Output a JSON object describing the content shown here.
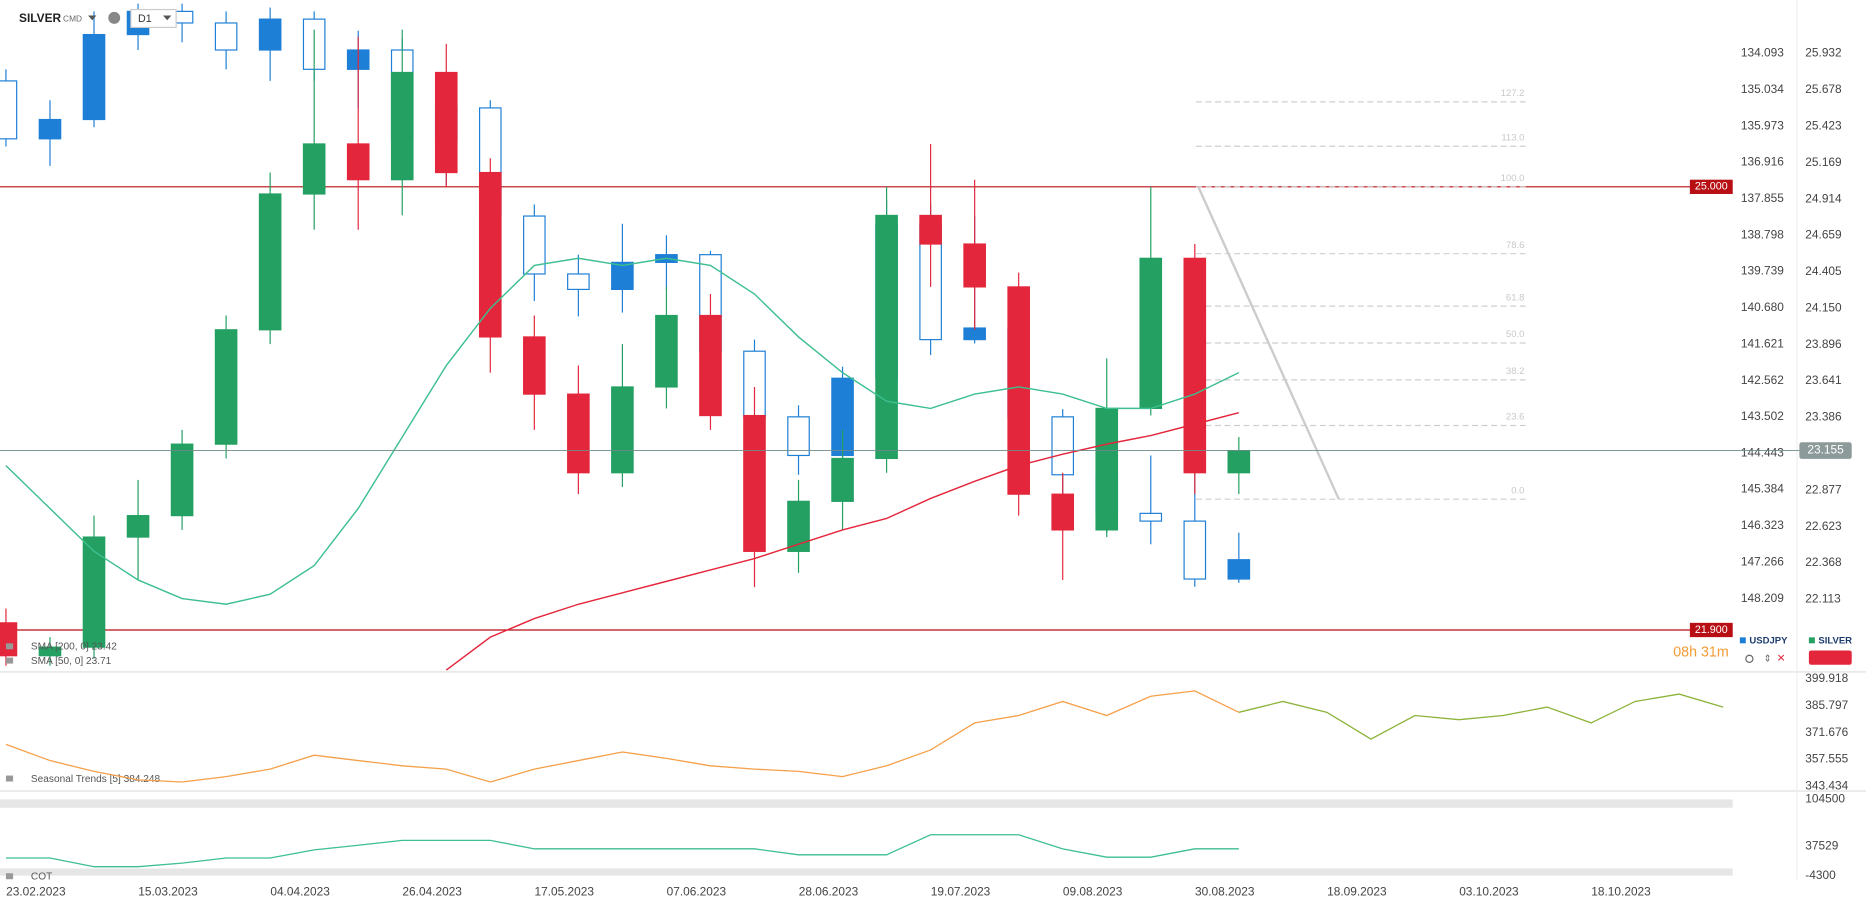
{
  "toolbar": {
    "symbol": "SILVER",
    "market": "CMD",
    "interval": "D1"
  },
  "timer": "08h 31m",
  "chart_data": [
    {
      "type": "candlestick",
      "ylim": [
        21.615,
        26.307
      ],
      "yticks": [
        25.932,
        25.678,
        25.423,
        25.169,
        24.914,
        24.659,
        24.405,
        {
          "value": 24.15,
          "label": "24.150"
        },
        23.896,
        23.641,
        23.386,
        22.877,
        22.623,
        22.368,
        22.113
      ],
      "y2lim": [
        132.705,
        150.075
      ],
      "y2_inverted": true,
      "y2ticks": [
        134.093,
        135.034,
        135.973,
        136.916,
        137.855,
        138.798,
        139.739,
        {
          "value": 140.68,
          "label": "140.680"
        },
        141.621,
        142.562,
        143.502,
        144.443,
        145.384,
        146.323,
        147.266,
        148.209
      ],
      "date_labels": [
        "23.02.2023",
        "15.03.2023",
        "04.04.2023",
        "26.04.2023",
        "17.05.2023",
        "07.06.2023",
        "28.06.2023",
        "19.07.2023",
        "09.08.2023",
        "30.08.2023",
        "18.09.2023",
        "03.10.2023",
        "18.10.2023"
      ],
      "series": [
        {
          "name": "USDJPY",
          "color": "#1e7fd6",
          "axis": "y2",
          "open": [
            134.8,
            136.3,
            135.8,
            133.6,
            133.0,
            133.3,
            134.0,
            133.2,
            134.5,
            134.0,
            136.3,
            135.5,
            138.3,
            139.8,
            140.2,
            139.5,
            139.3,
            141.8,
            143.5,
            144.5,
            142.5,
            138.5,
            141.5,
            141.2,
            143.5,
            145.0,
            146.0,
            146.2,
            147.7
          ],
          "high": [
            136.5,
            137.0,
            136.0,
            134.0,
            133.8,
            134.5,
            134.8,
            134.8,
            135.5,
            136.6,
            137.5,
            138.5,
            140.5,
            140.9,
            140.8,
            140.2,
            142.0,
            143.6,
            145.0,
            144.8,
            142.6,
            141.9,
            141.6,
            143.9,
            145.5,
            146.5,
            146.8,
            147.9,
            147.8
          ],
          "low": [
            134.5,
            135.3,
            133.0,
            132.8,
            132.8,
            133.0,
            132.9,
            133.0,
            133.5,
            133.7,
            135.0,
            135.3,
            138.0,
            139.3,
            138.5,
            138.8,
            139.2,
            141.5,
            143.2,
            142.2,
            137.9,
            138.0,
            138.3,
            141.0,
            143.3,
            144.8,
            144.5,
            144.8,
            146.5
          ],
          "close": [
            136.3,
            135.8,
            133.6,
            133.0,
            133.3,
            134.0,
            133.2,
            134.5,
            134.0,
            136.3,
            135.5,
            138.3,
            139.8,
            140.2,
            139.5,
            139.3,
            141.8,
            143.5,
            144.5,
            142.5,
            138.5,
            141.5,
            141.2,
            143.5,
            145.0,
            146.0,
            146.2,
            147.7,
            147.2
          ]
        },
        {
          "name": "SILVER",
          "color": "#23a062",
          "down_color": "#e3263b",
          "open": [
            21.95,
            21.72,
            21.78,
            22.55,
            22.7,
            23.2,
            24.0,
            24.95,
            25.3,
            25.05,
            25.8,
            25.1,
            23.95,
            23.55,
            23.0,
            23.6,
            24.1,
            23.4,
            22.45,
            22.8,
            23.1,
            24.8,
            24.6,
            24.3,
            22.85,
            22.6,
            23.45,
            24.5,
            23.0
          ],
          "high": [
            22.05,
            21.85,
            22.7,
            22.95,
            23.3,
            24.1,
            25.1,
            26.1,
            26.05,
            26.1,
            26.0,
            25.2,
            24.1,
            23.75,
            23.9,
            24.3,
            24.25,
            23.6,
            22.95,
            23.3,
            25.0,
            25.3,
            25.05,
            24.4,
            23.0,
            23.8,
            25.0,
            24.6,
            23.25
          ],
          "low": [
            21.65,
            21.65,
            21.7,
            22.25,
            22.6,
            23.1,
            23.9,
            24.7,
            24.7,
            24.8,
            25.0,
            23.7,
            23.3,
            22.85,
            22.9,
            23.45,
            23.3,
            22.2,
            22.3,
            22.6,
            23.0,
            24.3,
            24.0,
            22.7,
            22.25,
            22.55,
            23.4,
            22.85,
            22.85
          ],
          "close": [
            21.72,
            21.78,
            22.55,
            22.7,
            23.2,
            24.0,
            24.95,
            25.3,
            25.05,
            25.8,
            25.1,
            23.95,
            23.55,
            23.0,
            23.6,
            24.1,
            23.4,
            22.45,
            22.8,
            23.1,
            24.8,
            24.6,
            24.3,
            22.85,
            22.6,
            23.45,
            24.5,
            23.0,
            23.155
          ]
        }
      ],
      "indicators": [
        {
          "name": "SMA [200, 0] 23.42",
          "color": "#e3263b",
          "values": [
            null,
            null,
            null,
            null,
            null,
            null,
            null,
            null,
            null,
            null,
            21.62,
            21.85,
            21.98,
            22.08,
            22.16,
            22.24,
            22.32,
            22.4,
            22.5,
            22.6,
            22.68,
            22.82,
            22.94,
            23.05,
            23.13,
            23.2,
            23.26,
            23.34,
            23.42
          ]
        },
        {
          "name": "SMA [50, 0] 23.71",
          "color": "#3dbf8f",
          "values": [
            23.05,
            22.75,
            22.45,
            22.25,
            22.12,
            22.08,
            22.15,
            22.35,
            22.75,
            23.25,
            23.75,
            24.15,
            24.45,
            24.5,
            24.45,
            24.5,
            24.45,
            24.25,
            23.95,
            23.7,
            23.5,
            23.45,
            23.55,
            23.6,
            23.55,
            23.45,
            23.45,
            23.55,
            23.7
          ]
        }
      ],
      "levels": [
        {
          "value": 25.0,
          "label": "25.000",
          "color": "#b80f14"
        },
        {
          "value": 21.9,
          "label": "21.900",
          "color": "#b80f14"
        }
      ],
      "last_price": 23.155,
      "fib": {
        "high": 25.0,
        "low": 22.815,
        "levels": [
          {
            "value": 127.2,
            "label": "127.2"
          },
          {
            "value": 113,
            "label": "113.0"
          },
          {
            "value": 100,
            "label": "100.0"
          },
          {
            "value": 78.6,
            "label": "78.6"
          },
          {
            "value": 61.8,
            "label": "61.8"
          },
          {
            "value": 50,
            "label": "50.0"
          },
          {
            "value": 38.2,
            "label": "38.2"
          },
          {
            "value": 23.6,
            "label": "23.6"
          },
          {
            "value": 0,
            "label": "0.0"
          }
        ]
      }
    },
    {
      "type": "line",
      "title": "Seasonal Trends [5] 384.248",
      "ylim": [
        343.434,
        399.918
      ],
      "yticks": [
        399.918,
        385.797,
        371.676,
        357.555,
        343.434
      ],
      "series": [
        {
          "color": "#f5a04a",
          "values": [
            365.5,
            357.0,
            351.3,
            346.8,
            345.7,
            348.5,
            352.5,
            359.8,
            357.0,
            354.2,
            352.5,
            345.7,
            352.5,
            357.0,
            361.5,
            358.1,
            354.2,
            352.5,
            351.3,
            348.5,
            354.2,
            362.6,
            376.8,
            380.7,
            388.1,
            380.7,
            390.9,
            393.7,
            382.4,
            null,
            null,
            null,
            null,
            null,
            null,
            null,
            null,
            null,
            null,
            null
          ]
        },
        {
          "color": "#8db33a",
          "values": [
            null,
            null,
            null,
            null,
            null,
            null,
            null,
            null,
            null,
            null,
            null,
            null,
            null,
            null,
            null,
            null,
            null,
            null,
            null,
            null,
            null,
            null,
            null,
            null,
            null,
            null,
            null,
            null,
            382.4,
            388.1,
            382.4,
            368.3,
            380.7,
            378.5,
            380.7,
            385.2,
            376.8,
            388.1,
            392.0,
            385.2
          ]
        }
      ]
    },
    {
      "type": "line",
      "title": "COT",
      "ylim": [
        -4300,
        104500
      ],
      "yticks": [
        104500,
        37529,
        -4300
      ],
      "series": [
        {
          "color": "#3dbf8f",
          "values": [
            20800,
            20800,
            8500,
            8500,
            13500,
            20800,
            20800,
            32500,
            39000,
            46000,
            46000,
            46000,
            34000,
            34000,
            34000,
            34000,
            34000,
            34000,
            25500,
            25500,
            25500,
            54000,
            54000,
            54000,
            34000,
            22000,
            22000,
            34000,
            34000
          ]
        }
      ]
    }
  ]
}
